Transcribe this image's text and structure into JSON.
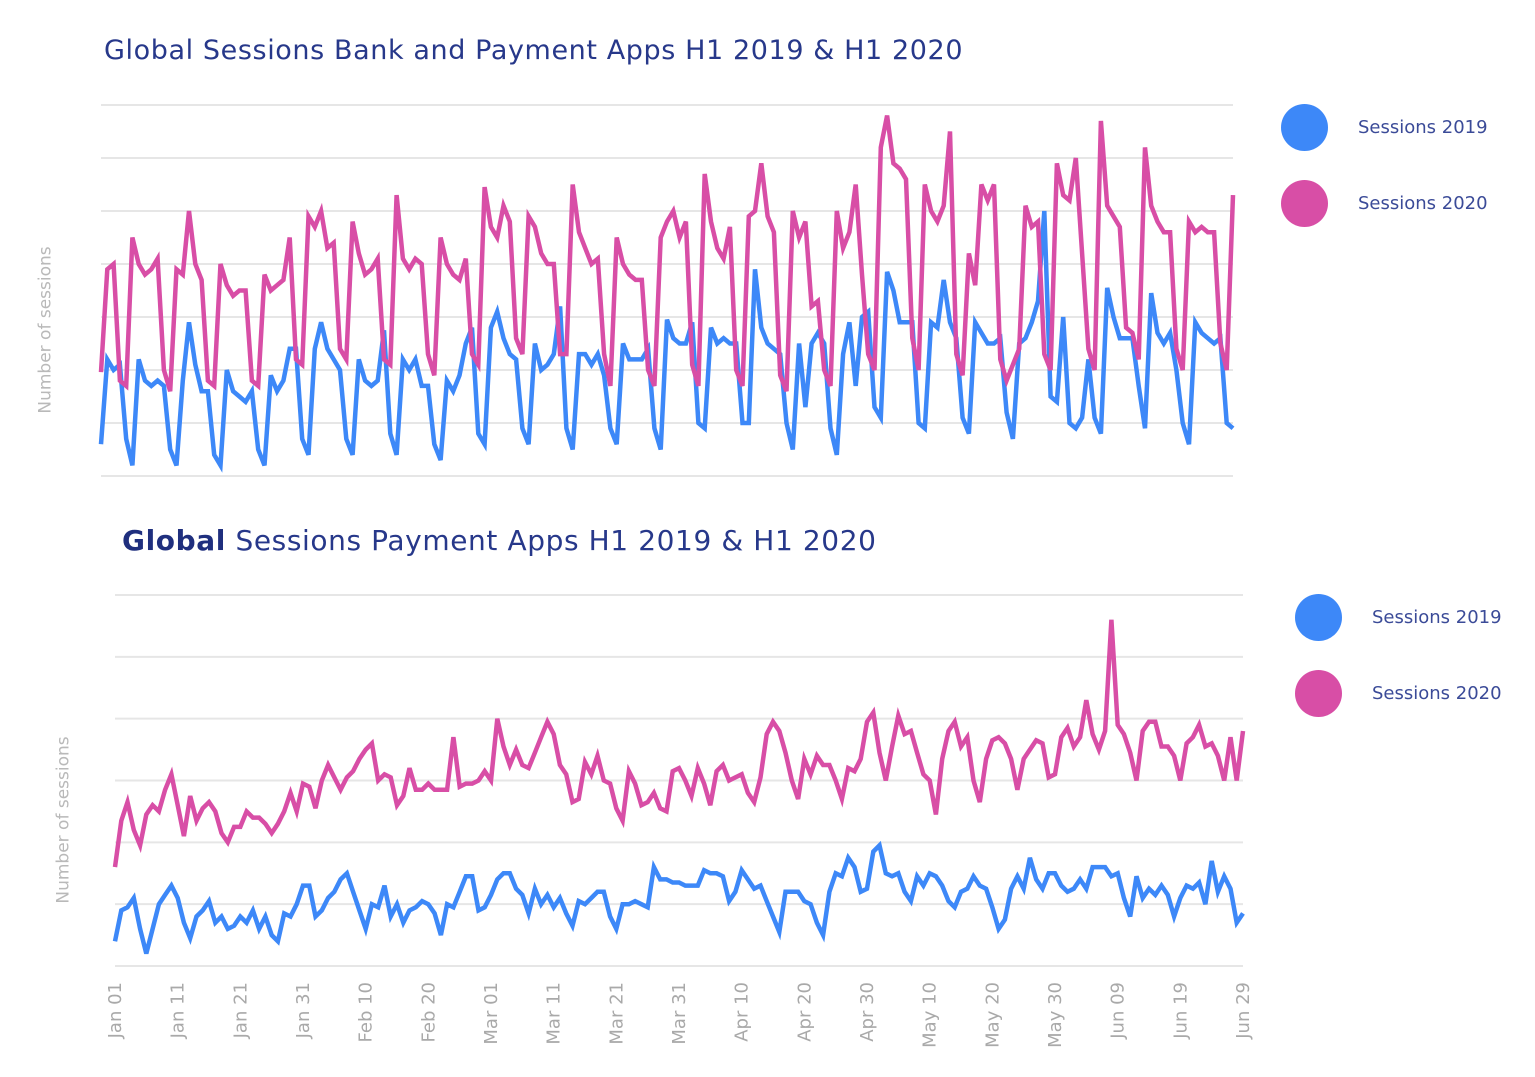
{
  "colors": {
    "sessions_2019": "#3d88f8",
    "sessions_2020": "#d84ea6",
    "grid": "#e6e6e6",
    "title": "#27388a",
    "tick": "#a9a9a9"
  },
  "chart_data": [
    {
      "type": "line",
      "title": "Global Sessions Bank and Payment Apps H1 2019 & H1 2020",
      "ylabel": "Number of sessions",
      "xlabel": "",
      "x_range": [
        "Jan 01",
        "Jun 29"
      ],
      "ylim": [
        0,
        7
      ],
      "y_ticks_printed": false,
      "grid": true,
      "legend_placement": "right",
      "legend": [
        "Sessions 2019",
        "Sessions 2020"
      ],
      "series": [
        {
          "name": "Sessions 2019",
          "color": "#3d88f8",
          "values": [
            0.6,
            2.2,
            2.0,
            2.1,
            0.7,
            0.2,
            2.2,
            1.8,
            1.7,
            1.8,
            1.7,
            0.5,
            0.2,
            1.8,
            2.9,
            2.1,
            1.6,
            1.6,
            0.4,
            0.2,
            2.0,
            1.6,
            1.5,
            1.4,
            1.6,
            0.5,
            0.2,
            1.9,
            1.6,
            1.8,
            2.4,
            2.4,
            0.7,
            0.4,
            2.4,
            2.9,
            2.4,
            2.2,
            2.0,
            0.7,
            0.4,
            2.2,
            1.8,
            1.7,
            1.8,
            2.75,
            0.8,
            0.4,
            2.2,
            2.0,
            2.2,
            1.7,
            1.7,
            0.6,
            0.3,
            1.8,
            1.6,
            1.9,
            2.5,
            2.8,
            0.8,
            0.6,
            2.8,
            3.1,
            2.6,
            2.3,
            2.2,
            0.9,
            0.6,
            2.5,
            2.0,
            2.1,
            2.3,
            3.2,
            0.9,
            0.5,
            2.3,
            2.3,
            2.1,
            2.3,
            1.9,
            0.9,
            0.6,
            2.5,
            2.2,
            2.2,
            2.2,
            2.4,
            0.9,
            0.5,
            2.95,
            2.6,
            2.5,
            2.5,
            2.9,
            1.0,
            0.9,
            2.8,
            2.5,
            2.6,
            2.5,
            2.5,
            1.0,
            1.0,
            3.9,
            2.8,
            2.5,
            2.4,
            2.3,
            1.0,
            0.5,
            2.5,
            1.3,
            2.5,
            2.7,
            2.5,
            0.9,
            0.4,
            2.3,
            2.9,
            1.7,
            3.0,
            3.1,
            1.3,
            1.1,
            3.85,
            3.5,
            2.9,
            2.9,
            2.9,
            1.0,
            0.9,
            2.9,
            2.8,
            3.7,
            2.9,
            2.6,
            1.1,
            0.8,
            2.9,
            2.7,
            2.5,
            2.5,
            2.6,
            1.2,
            0.7,
            2.5,
            2.6,
            2.9,
            3.3,
            5.0,
            1.5,
            1.4,
            3.0,
            1.0,
            0.9,
            1.1,
            2.2,
            1.1,
            0.8,
            3.55,
            3.0,
            2.6,
            2.6,
            2.6,
            1.7,
            0.9,
            3.45,
            2.7,
            2.5,
            2.7,
            2.0,
            1.0,
            0.6,
            2.9,
            2.7,
            2.6,
            2.5,
            2.6,
            1.0,
            0.9
          ]
        },
        {
          "name": "Sessions 2020",
          "color": "#d84ea6",
          "values": [
            1.96,
            3.9,
            4.0,
            1.8,
            1.7,
            4.5,
            4.0,
            3.8,
            3.9,
            4.1,
            2.0,
            1.6,
            3.9,
            3.8,
            5.0,
            4.0,
            3.7,
            1.8,
            1.7,
            4.0,
            3.6,
            3.4,
            3.5,
            3.5,
            1.8,
            1.7,
            3.8,
            3.5,
            3.6,
            3.7,
            4.5,
            2.2,
            2.1,
            4.9,
            4.7,
            5.0,
            4.3,
            4.4,
            2.4,
            2.2,
            4.8,
            4.2,
            3.8,
            3.9,
            4.1,
            2.2,
            2.1,
            5.3,
            4.1,
            3.9,
            4.1,
            4.0,
            2.3,
            1.9,
            4.5,
            4.0,
            3.8,
            3.7,
            4.1,
            2.3,
            2.1,
            5.45,
            4.7,
            4.5,
            5.1,
            4.8,
            2.6,
            2.3,
            4.9,
            4.7,
            4.2,
            4.0,
            4.0,
            2.3,
            2.3,
            5.5,
            4.6,
            4.3,
            4.0,
            4.1,
            2.3,
            1.7,
            4.5,
            4.0,
            3.8,
            3.7,
            3.7,
            2.0,
            1.7,
            4.5,
            4.8,
            5.0,
            4.5,
            4.8,
            2.1,
            1.7,
            5.7,
            4.8,
            4.3,
            4.1,
            4.7,
            2.0,
            1.7,
            4.9,
            5.0,
            5.9,
            4.9,
            4.6,
            1.9,
            1.6,
            5.0,
            4.5,
            4.8,
            3.2,
            3.3,
            2.0,
            1.7,
            5.0,
            4.3,
            4.6,
            5.5,
            3.8,
            2.3,
            2.0,
            6.2,
            6.8,
            5.9,
            5.8,
            5.6,
            2.6,
            2.0,
            5.5,
            5.0,
            4.8,
            5.1,
            6.5,
            2.3,
            1.9,
            4.2,
            3.6,
            5.5,
            5.2,
            5.5,
            2.2,
            1.8,
            2.1,
            2.4,
            5.1,
            4.7,
            4.8,
            2.3,
            2.0,
            5.9,
            5.3,
            5.2,
            6.0,
            4.2,
            2.4,
            2.0,
            6.7,
            5.1,
            4.9,
            4.7,
            2.8,
            2.7,
            2.2,
            6.2,
            5.1,
            4.8,
            4.6,
            4.6,
            2.4,
            2.0,
            4.8,
            4.6,
            4.7,
            4.6,
            4.6,
            2.5,
            2.0,
            5.3
          ]
        }
      ]
    },
    {
      "type": "line",
      "title_bold": "Global",
      "title_rest": " Sessions Payment Apps H1 2019 & H1 2020",
      "ylabel": "Number of sessions",
      "xlabel": "",
      "ylim": [
        0,
        6
      ],
      "y_ticks_printed": false,
      "grid": true,
      "legend_placement": "right",
      "legend": [
        "Sessions 2019",
        "Sessions 2020"
      ],
      "x_ticks": [
        "Jan 01",
        "Jan 11",
        "Jan 21",
        "Jan 31",
        "Feb 10",
        "Feb 20",
        "Mar 01",
        "Mar 11",
        "Mar 21",
        "Mar 31",
        "Apr 10",
        "Apr 20",
        "Apr 30",
        "May 10",
        "May 20",
        "May 30",
        "Jun 09",
        "Jun 19",
        "Jun 29"
      ],
      "series": [
        {
          "name": "Sessions 2019",
          "color": "#3d88f8",
          "values": [
            0.4,
            0.9,
            0.95,
            1.1,
            0.6,
            0.2,
            0.6,
            1.0,
            1.15,
            1.3,
            1.1,
            0.7,
            0.45,
            0.8,
            0.9,
            1.05,
            0.7,
            0.8,
            0.6,
            0.65,
            0.8,
            0.7,
            0.9,
            0.6,
            0.8,
            0.5,
            0.4,
            0.85,
            0.8,
            1.0,
            1.3,
            1.3,
            0.8,
            0.9,
            1.1,
            1.2,
            1.4,
            1.5,
            1.2,
            0.9,
            0.6,
            1.0,
            0.95,
            1.3,
            0.8,
            1.0,
            0.7,
            0.9,
            0.95,
            1.05,
            1.0,
            0.85,
            0.5,
            1.0,
            0.95,
            1.2,
            1.45,
            1.45,
            0.9,
            0.95,
            1.15,
            1.4,
            1.5,
            1.5,
            1.25,
            1.15,
            0.85,
            1.25,
            1.0,
            1.15,
            0.95,
            1.1,
            0.85,
            0.65,
            1.05,
            1.0,
            1.1,
            1.2,
            1.2,
            0.8,
            0.6,
            1.0,
            1.0,
            1.05,
            1.0,
            0.95,
            1.6,
            1.4,
            1.4,
            1.35,
            1.35,
            1.3,
            1.3,
            1.3,
            1.55,
            1.5,
            1.5,
            1.45,
            1.05,
            1.2,
            1.55,
            1.4,
            1.25,
            1.3,
            1.05,
            0.8,
            0.55,
            1.2,
            1.2,
            1.2,
            1.05,
            1.0,
            0.7,
            0.5,
            1.2,
            1.5,
            1.45,
            1.75,
            1.6,
            1.2,
            1.25,
            1.85,
            1.95,
            1.5,
            1.45,
            1.5,
            1.2,
            1.05,
            1.45,
            1.3,
            1.5,
            1.45,
            1.3,
            1.05,
            0.95,
            1.2,
            1.25,
            1.45,
            1.3,
            1.25,
            0.95,
            0.6,
            0.75,
            1.25,
            1.45,
            1.25,
            1.75,
            1.4,
            1.25,
            1.5,
            1.5,
            1.3,
            1.2,
            1.25,
            1.4,
            1.25,
            1.6,
            1.6,
            1.6,
            1.45,
            1.5,
            1.1,
            0.8,
            1.45,
            1.1,
            1.25,
            1.15,
            1.3,
            1.15,
            0.8,
            1.1,
            1.3,
            1.25,
            1.35,
            1.0,
            1.7,
            1.2,
            1.45,
            1.25,
            0.7,
            0.85
          ]
        },
        {
          "name": "Sessions 2020",
          "color": "#d84ea6",
          "values": [
            1.6,
            2.35,
            2.65,
            2.2,
            1.95,
            2.45,
            2.6,
            2.5,
            2.85,
            3.1,
            2.6,
            2.1,
            2.75,
            2.35,
            2.55,
            2.65,
            2.5,
            2.15,
            2.0,
            2.25,
            2.25,
            2.5,
            2.4,
            2.4,
            2.3,
            2.15,
            2.3,
            2.5,
            2.8,
            2.5,
            2.95,
            2.9,
            2.55,
            3.0,
            3.25,
            3.05,
            2.85,
            3.05,
            3.15,
            3.35,
            3.5,
            3.6,
            3.0,
            3.1,
            3.05,
            2.6,
            2.75,
            3.2,
            2.85,
            2.85,
            2.95,
            2.85,
            2.85,
            2.85,
            3.7,
            2.9,
            2.95,
            2.95,
            3.0,
            3.15,
            3.0,
            4.0,
            3.55,
            3.25,
            3.5,
            3.25,
            3.2,
            3.45,
            3.7,
            3.95,
            3.75,
            3.25,
            3.1,
            2.65,
            2.7,
            3.3,
            3.1,
            3.4,
            3.0,
            2.95,
            2.55,
            2.35,
            3.15,
            2.95,
            2.6,
            2.65,
            2.8,
            2.55,
            2.5,
            3.15,
            3.2,
            3.0,
            2.75,
            3.2,
            2.95,
            2.6,
            3.15,
            3.25,
            3.0,
            3.05,
            3.1,
            2.8,
            2.65,
            3.05,
            3.75,
            3.95,
            3.8,
            3.45,
            3.0,
            2.7,
            3.35,
            3.1,
            3.4,
            3.25,
            3.25,
            3.0,
            2.7,
            3.2,
            3.15,
            3.35,
            3.95,
            4.1,
            3.45,
            3.0,
            3.55,
            4.05,
            3.75,
            3.8,
            3.45,
            3.1,
            3.0,
            2.45,
            3.35,
            3.8,
            3.95,
            3.55,
            3.7,
            3.0,
            2.65,
            3.35,
            3.65,
            3.7,
            3.6,
            3.35,
            2.85,
            3.35,
            3.5,
            3.65,
            3.6,
            3.05,
            3.1,
            3.7,
            3.85,
            3.55,
            3.7,
            4.3,
            3.75,
            3.5,
            3.8,
            5.6,
            3.9,
            3.75,
            3.45,
            3.0,
            3.8,
            3.95,
            3.95,
            3.55,
            3.55,
            3.4,
            3.0,
            3.6,
            3.7,
            3.9,
            3.55,
            3.6,
            3.4,
            3.0,
            3.7,
            3.0,
            3.8
          ]
        }
      ]
    }
  ]
}
